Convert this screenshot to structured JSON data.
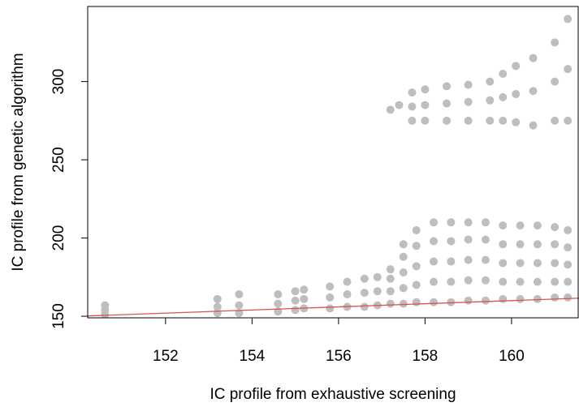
{
  "chart_data": {
    "type": "scatter",
    "xlabel": "IC profile from exhaustive screening",
    "ylabel": "IC profile from genetic algorithm",
    "xlim": [
      150.2,
      161.56
    ],
    "ylim": [
      149,
      348
    ],
    "xticks": [
      152,
      154,
      156,
      158,
      160
    ],
    "yticks": [
      150,
      200,
      250,
      300
    ],
    "color": "#bebebe",
    "reference_line": {
      "slope": 1,
      "intercept": 0,
      "color": "#d9534f"
    },
    "x": [
      150.6,
      150.6,
      150.6,
      153.2,
      153.2,
      153.2,
      153.7,
      153.7,
      153.7,
      154.6,
      154.6,
      154.6,
      155.0,
      155.0,
      155.0,
      155.2,
      155.2,
      155.2,
      155.8,
      155.8,
      155.8,
      156.2,
      156.2,
      156.2,
      156.6,
      156.6,
      156.6,
      156.9,
      156.9,
      156.9,
      157.2,
      157.2,
      157.2,
      157.2,
      157.5,
      157.5,
      157.5,
      157.5,
      157.5,
      157.8,
      157.8,
      157.8,
      157.8,
      157.8,
      158.2,
      158.2,
      158.2,
      158.2,
      158.2,
      158.6,
      158.6,
      158.6,
      158.6,
      158.6,
      159.0,
      159.0,
      159.0,
      159.0,
      159.0,
      159.4,
      159.4,
      159.4,
      159.4,
      159.4,
      159.8,
      159.8,
      159.8,
      159.8,
      159.8,
      160.2,
      160.2,
      160.2,
      160.2,
      160.2,
      160.6,
      160.6,
      160.6,
      160.6,
      160.6,
      161.0,
      161.0,
      161.0,
      161.0,
      161.0,
      161.3,
      161.3,
      161.3,
      161.3,
      161.3,
      157.2,
      157.4,
      157.7,
      157.7,
      157.7,
      158.0,
      158.0,
      158.0,
      158.5,
      158.5,
      158.5,
      159.0,
      159.0,
      159.0,
      159.5,
      159.5,
      159.5,
      159.8,
      159.8,
      159.8,
      160.1,
      160.1,
      160.1,
      160.5,
      160.5,
      160.5,
      161.0,
      161.0,
      161.0,
      161.3,
      161.3,
      161.3
    ],
    "y": [
      151,
      154,
      157,
      152,
      156,
      161,
      152,
      157,
      164,
      153,
      158,
      164,
      154,
      160,
      166,
      155,
      161,
      167,
      155,
      162,
      169,
      156,
      164,
      172,
      156,
      165,
      174,
      157,
      166,
      175,
      158,
      166,
      174,
      180,
      158,
      168,
      178,
      188,
      196,
      159,
      170,
      182,
      195,
      205,
      159,
      172,
      185,
      198,
      210,
      159,
      172,
      185,
      198,
      210,
      160,
      173,
      186,
      199,
      210,
      160,
      173,
      186,
      199,
      210,
      161,
      172,
      184,
      196,
      208,
      161,
      172,
      184,
      196,
      208,
      161,
      172,
      184,
      196,
      208,
      162,
      172,
      184,
      196,
      207,
      162,
      172,
      183,
      194,
      205,
      282,
      285,
      275,
      284,
      293,
      275,
      285,
      295,
      275,
      286,
      297,
      275,
      287,
      298,
      275,
      288,
      300,
      275,
      290,
      305,
      274,
      292,
      310,
      272,
      294,
      315,
      275,
      300,
      325,
      275,
      308,
      340
    ]
  }
}
